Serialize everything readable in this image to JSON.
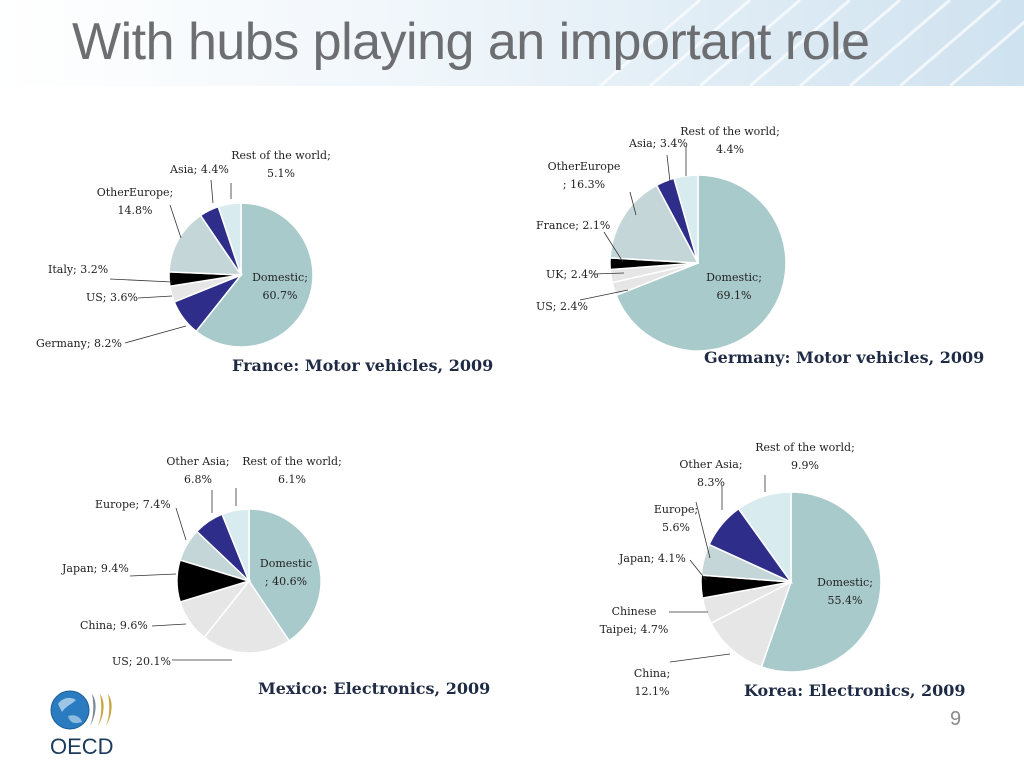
{
  "title": "With hubs playing an important role",
  "page_number": "9",
  "logo": {
    "name": "oecd-logo",
    "text": "OECD"
  },
  "colors": {
    "title": "#6d6e71",
    "chart_title": "#1f2a44",
    "Domestic": "#a8cacb",
    "Germany": "#2e2d8a",
    "US": "#e6e6e6",
    "Italy": "#000000",
    "OtherEurope": "#c4d6d7",
    "Asia": "#2e2d8a",
    "Rest of the world": "#d8ecf0",
    "UK": "#e6e6e6",
    "France": "#000000",
    "China": "#e6e6e6",
    "Japan": "#000000",
    "Europe": "#c4d6d7",
    "Other Asia": "#2e2d8a",
    "Chinese Taipei": "#e6e6e6"
  },
  "chart_data": [
    {
      "type": "pie",
      "title": "France: Motor vehicles, 2009",
      "labels": [
        "Domestic",
        "Germany",
        "US",
        "Italy",
        "OtherEurope",
        "Asia",
        "Rest of the world"
      ],
      "values": [
        60.7,
        8.2,
        3.6,
        3.2,
        14.8,
        4.4,
        5.1
      ],
      "data_labels": [
        "Domestic;\n60.7%",
        "Germany; 8.2%",
        "US; 3.6%",
        "Italy; 3.2%",
        "OtherEurope;\n14.8%",
        "Asia; 4.4%",
        "Rest of the world;\n5.1%"
      ]
    },
    {
      "type": "pie",
      "title": "Germany: Motor vehicles, 2009",
      "labels": [
        "Domestic",
        "US",
        "UK",
        "France",
        "OtherEurope",
        "Asia",
        "Rest of the world"
      ],
      "values": [
        69.1,
        2.4,
        2.4,
        2.1,
        16.3,
        3.4,
        4.4
      ],
      "data_labels": [
        "Domestic;\n69.1%",
        "US; 2.4%",
        "UK; 2.4%",
        "France; 2.1%",
        "OtherEurope\n; 16.3%",
        "Asia; 3.4%",
        "Rest of the world;\n4.4%"
      ]
    },
    {
      "type": "pie",
      "title": "Mexico: Electronics, 2009",
      "labels": [
        "Domestic",
        "US",
        "China",
        "Japan",
        "Europe",
        "Other Asia",
        "Rest of the world"
      ],
      "values": [
        40.6,
        20.1,
        9.6,
        9.4,
        7.4,
        6.8,
        6.1
      ],
      "data_labels": [
        "Domestic\n; 40.6%",
        "US; 20.1%",
        "China; 9.6%",
        "Japan; 9.4%",
        "Europe; 7.4%",
        "Other Asia;\n6.8%",
        "Rest of the world;\n6.1%"
      ]
    },
    {
      "type": "pie",
      "title": "Korea: Electronics, 2009",
      "labels": [
        "Domestic",
        "China",
        "Chinese Taipei",
        "Japan",
        "Europe",
        "Other Asia",
        "Rest of the world"
      ],
      "values": [
        55.4,
        12.1,
        4.7,
        4.1,
        5.6,
        8.3,
        9.9
      ],
      "data_labels": [
        "Domestic;\n55.4%",
        "China;\n12.1%",
        "Chinese\nTaipei; 4.7%",
        "Japan; 4.1%",
        "Europe;\n5.6%",
        "Other Asia;\n8.3%",
        "Rest of the world;\n9.9%"
      ]
    }
  ]
}
